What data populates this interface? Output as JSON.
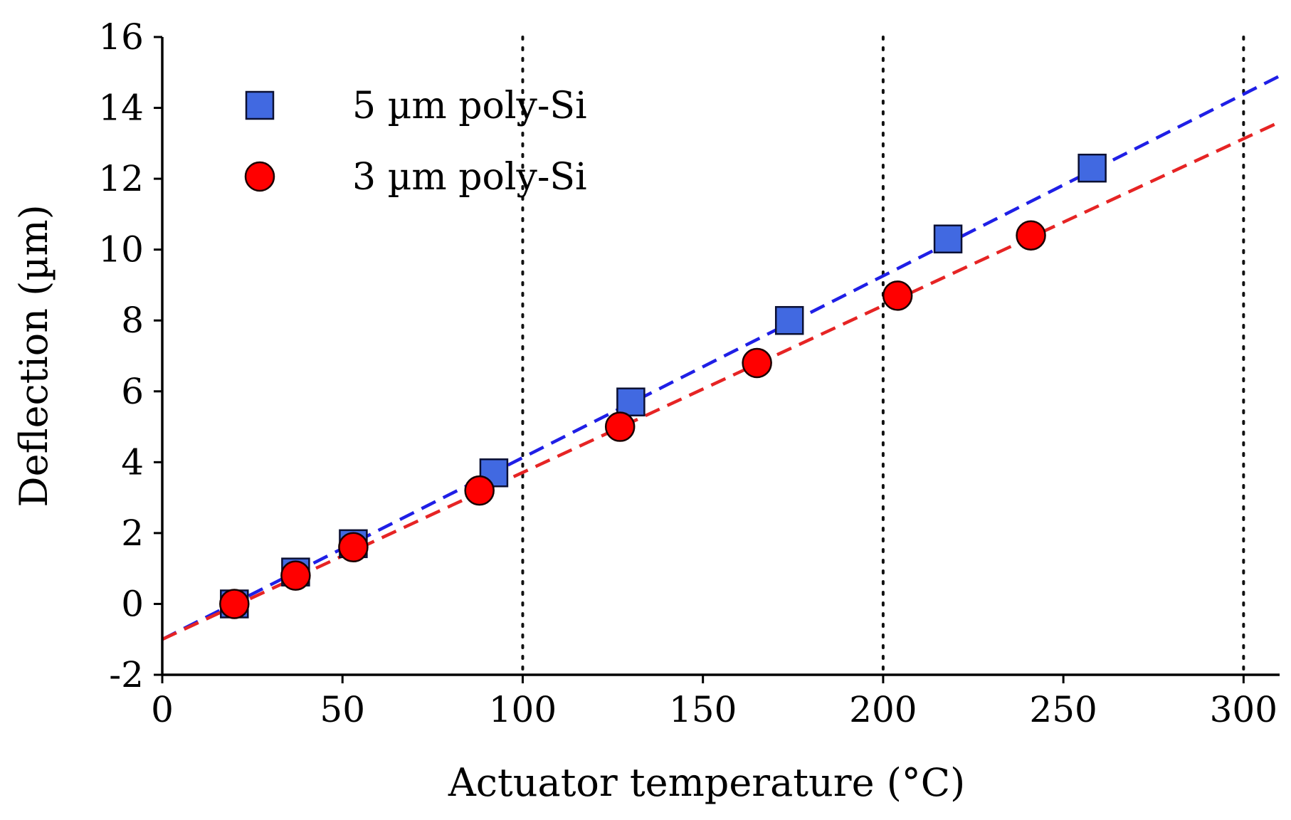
{
  "chart_data": {
    "type": "scatter",
    "title": "",
    "xlabel": "Actuator temperature (°C)",
    "ylabel": "Deflection (µm)",
    "xlim": [
      0,
      310
    ],
    "ylim": [
      -2,
      16
    ],
    "xticks": [
      0,
      50,
      100,
      150,
      200,
      250,
      300
    ],
    "yticks": [
      -2,
      0,
      2,
      4,
      6,
      8,
      10,
      12,
      14,
      16
    ],
    "xtick_labels": [
      "0",
      "50",
      "100",
      "150",
      "200",
      "250",
      "300"
    ],
    "ytick_labels": [
      "-2",
      "0",
      "2",
      "4",
      "6",
      "8",
      "10",
      "12",
      "14",
      "16"
    ],
    "grid": false,
    "vertical_reference_lines": [
      100,
      200,
      300
    ],
    "legend_position": "top-left",
    "series": [
      {
        "name": "5 µm poly-Si",
        "marker": "square",
        "color": "#4169e1",
        "fit_color": "#1f1fe6",
        "x": [
          20,
          37,
          53,
          92,
          130,
          174,
          218,
          258
        ],
        "y": [
          0.0,
          0.9,
          1.7,
          3.7,
          5.7,
          8.0,
          10.3,
          12.3
        ],
        "fit": {
          "x": [
            0,
            310
          ],
          "y": [
            -1.0,
            14.9
          ]
        }
      },
      {
        "name": "3 µm poly-Si",
        "marker": "circle",
        "color": "#ff0000",
        "fit_color": "#e62424",
        "x": [
          20,
          37,
          53,
          88,
          127,
          165,
          204,
          241
        ],
        "y": [
          0.0,
          0.8,
          1.6,
          3.2,
          5.0,
          6.8,
          8.7,
          10.4
        ],
        "fit": {
          "x": [
            0,
            310
          ],
          "y": [
            -1.0,
            13.6
          ]
        }
      }
    ]
  }
}
